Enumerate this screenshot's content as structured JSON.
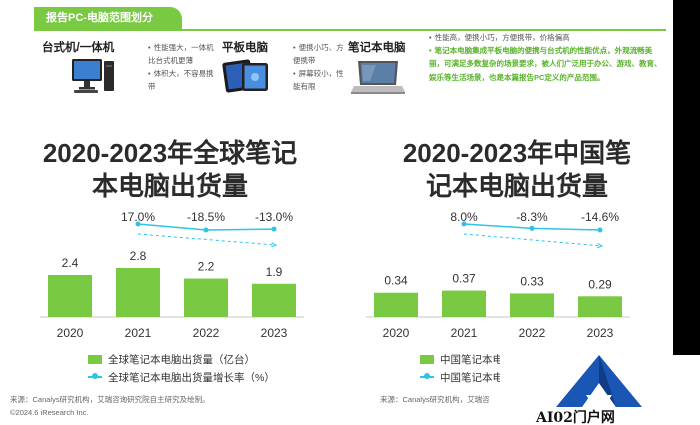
{
  "header": {
    "title": "报告PC-电脑范围划分"
  },
  "categories": [
    {
      "name": "台式机/一体机",
      "icon": "desktop-computer-icon",
      "bullets": [
        "性能强大，一体机比台式机更薄",
        "体积大，不容易携带"
      ]
    },
    {
      "name": "平板电脑",
      "icon": "tablet-icon",
      "bullets": [
        "便携小巧、方便携带",
        "屏幕较小，性能有限"
      ]
    },
    {
      "name": "笔记本电脑",
      "icon": "laptop-icon",
      "bullets": [
        "性能高，便携小巧，方便携带，价格偏高"
      ],
      "highlight": "笔记本电脑集成平板电脑的便携与台式机的性能优点，外观流畅美丽，可满足多数复杂的场景要求，被人们广泛用于办公、游戏、教育、娱乐等生活场景，也是本篇报告PC定义的产品范围。"
    }
  ],
  "chart_data": [
    {
      "type": "bar",
      "title": "2020-2023年全球笔记本电脑出货量",
      "categories": [
        "2020",
        "2021",
        "2022",
        "2023"
      ],
      "series": [
        {
          "name": "全球笔记本电脑出货量（亿台）",
          "type": "bar",
          "values": [
            2.4,
            2.8,
            2.2,
            1.9
          ],
          "labels": [
            "2.4",
            "2.8",
            "2.2",
            "1.9"
          ],
          "color": "#7ac943"
        },
        {
          "name": "全球笔记本电脑出货量增长率（%）",
          "type": "line",
          "values": [
            17.0,
            -18.5,
            -13.0
          ],
          "x": [
            "2021",
            "2022",
            "2023"
          ],
          "labels": [
            "17.0%",
            "-18.5%",
            "-13.0%"
          ],
          "color": "#2ec4e6"
        }
      ],
      "ylim": [
        0,
        3.2
      ],
      "grid": false,
      "legend": "bottom",
      "title_lines": [
        "2020-2023年全球笔记",
        "本电脑出货量"
      ]
    },
    {
      "type": "bar",
      "title": "2020-2023年中国笔记本电脑出货量",
      "categories": [
        "2020",
        "2021",
        "2022",
        "2023"
      ],
      "series": [
        {
          "name": "中国笔记本电",
          "type": "bar",
          "values": [
            0.34,
            0.37,
            0.33,
            0.29
          ],
          "labels": [
            "0.34",
            "0.37",
            "0.33",
            "0.29"
          ],
          "color": "#7ac943"
        },
        {
          "name": "中国笔记本电",
          "type": "line",
          "values": [
            8.0,
            -8.3,
            -14.6
          ],
          "x": [
            "2021",
            "2022",
            "2023"
          ],
          "labels": [
            "8.0%",
            "-8.3%",
            "-14.6%"
          ],
          "color": "#2ec4e6"
        }
      ],
      "ylim": [
        0,
        0.42
      ],
      "grid": false,
      "legend": "bottom",
      "title_lines": [
        "2020-2023年中国笔",
        "记本电脑出货量"
      ]
    }
  ],
  "source_left": "来源：Canalys研究机构，艾瑞咨询研究院自主研究及绘制。",
  "copyright": "©2024.6 iResearch Inc.",
  "source_right": "来源：Canalys研究机构，艾瑞咨",
  "watermark": {
    "text": "AI02门户网",
    "color": "#1a56b3"
  }
}
